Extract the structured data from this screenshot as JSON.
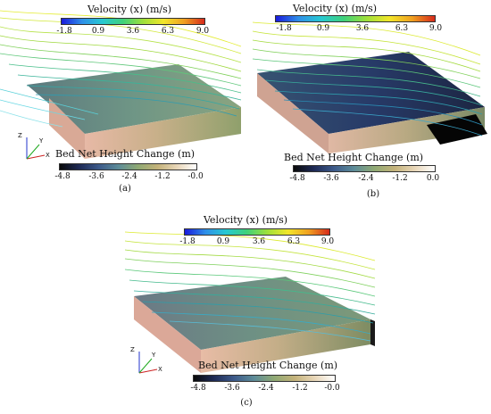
{
  "panels": [
    {
      "id": "a",
      "label": "(a)",
      "velocity_legend": {
        "title": "Velocity (x) (m/s)",
        "ticks": [
          "-1.8",
          "0.9",
          "3.6",
          "6.3",
          "9.0"
        ]
      },
      "bed_legend": {
        "title": "Bed Net Height Change (m)",
        "ticks": [
          "-4.8",
          "-3.6",
          "-2.4",
          "-1.2",
          "-0.0"
        ]
      },
      "axes": {
        "x": "X",
        "y": "Y",
        "z": "Z"
      }
    },
    {
      "id": "b",
      "label": "(b)",
      "velocity_legend": {
        "title": "Velocity (x) (m/s)",
        "ticks": [
          "-1.8",
          "0.9",
          "3.6",
          "6.3",
          "9.0"
        ]
      },
      "bed_legend": {
        "title": "Bed Net Height Change (m)",
        "ticks": [
          "-4.8",
          "-3.6",
          "-2.4",
          "-1.2",
          "0.0"
        ]
      },
      "axes": {
        "x": "X",
        "y": "Y",
        "z": "Z"
      }
    },
    {
      "id": "c",
      "label": "(c)",
      "velocity_legend": {
        "title": "Velocity (x) (m/s)",
        "ticks": [
          "-1.8",
          "0.9",
          "3.6",
          "6.3",
          "9.0"
        ]
      },
      "bed_legend": {
        "title": "Bed Net Height Change (m)",
        "ticks": [
          "-4.8",
          "-3.6",
          "-2.4",
          "-1.2",
          "-0.0"
        ]
      },
      "axes": {
        "x": "X",
        "y": "Y",
        "z": "Z"
      }
    }
  ],
  "colors": {
    "velocity_scale": [
      "#1a1adc",
      "#2f8fe8",
      "#27c9d2",
      "#3fd17a",
      "#9fe03a",
      "#f2e62a",
      "#f0a020",
      "#d62a1c"
    ],
    "bed_scale": [
      "#0a0a0a",
      "#1e2a55",
      "#3d5a8a",
      "#5d8c98",
      "#8fa974",
      "#c3b27a",
      "#e8d6b8",
      "#ffffff"
    ]
  }
}
